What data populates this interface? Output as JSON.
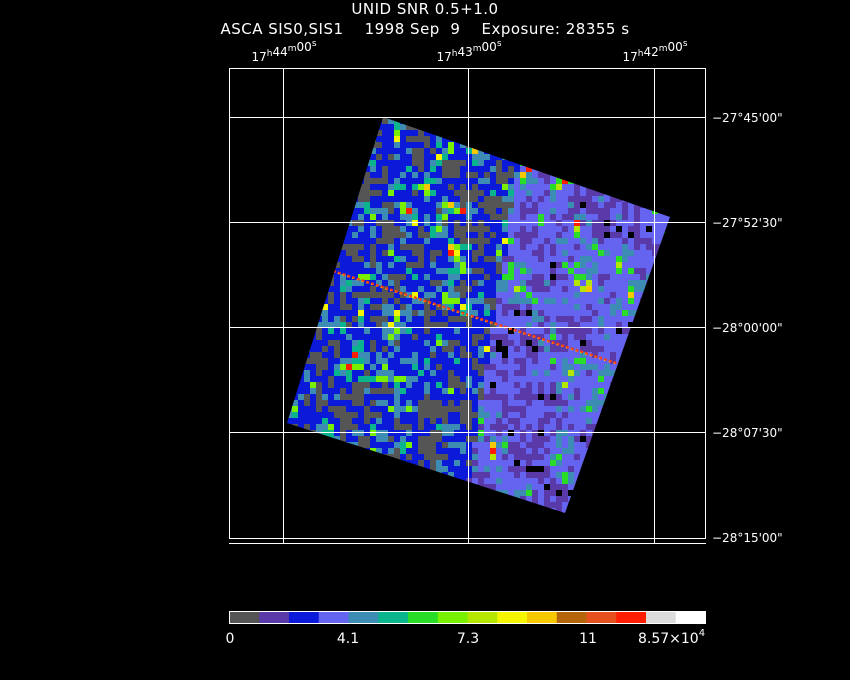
{
  "header": {
    "title": "UNID SNR 0.5+1.0",
    "subtitle": "ASCA SIS0,SIS1    1998 Sep  9    Exposure: 28355 s"
  },
  "axes": {
    "ra_labels": [
      {
        "h": "17",
        "m": "44",
        "s": "00"
      },
      {
        "h": "17",
        "m": "43",
        "s": "00"
      },
      {
        "h": "17",
        "m": "42",
        "s": "00"
      }
    ],
    "dec_labels": [
      "−27°45'00\"",
      "−27°52'30\"",
      "−28°00'00\"",
      "−28°07'30\"",
      "−28°15'00\""
    ]
  },
  "colorbar": {
    "colors": [
      "#555555",
      "#5a3aa8",
      "#0a1ad8",
      "#6464f0",
      "#3c8cb4",
      "#0ab48c",
      "#28dc28",
      "#78f000",
      "#b4e600",
      "#f5f500",
      "#f5c800",
      "#b4640a",
      "#e6501e",
      "#ff1e00",
      "#dcdcdc",
      "#ffffff"
    ],
    "labels": [
      "0",
      "4.1",
      "7.3",
      "11",
      "8.57×10"
    ],
    "exponent": "4"
  },
  "colors": {
    "background": "#000000",
    "grid": "#ffffff",
    "frame": "#ffffff"
  }
}
